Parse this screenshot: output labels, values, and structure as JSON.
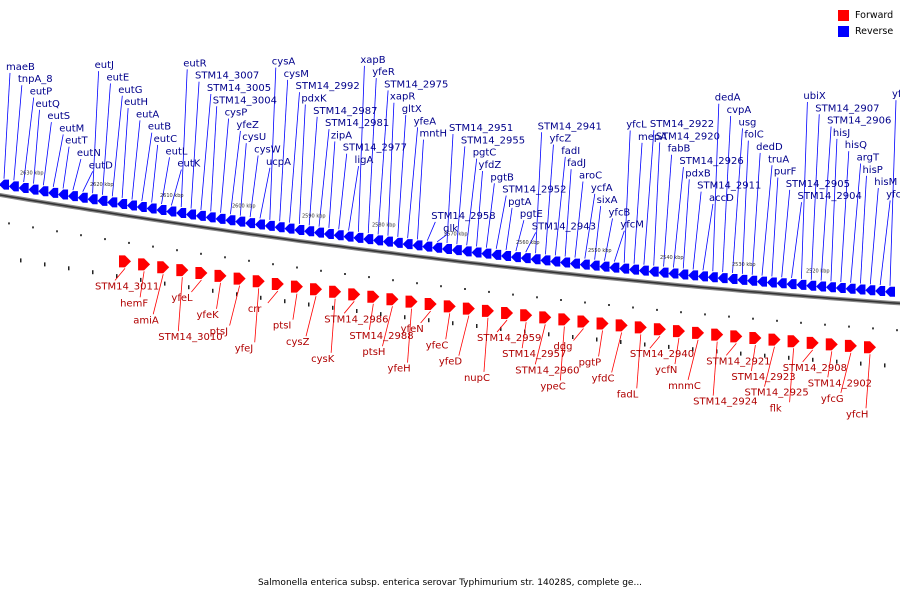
{
  "legend": {
    "forward": {
      "label": "Forward",
      "color": "#ff0000"
    },
    "reverse": {
      "label": "Reverse",
      "color": "#0000ff"
    }
  },
  "caption": "Salmonella enterica subsp. enterica serovar Typhimurium str. 14028S, complete ge...",
  "coordinates": [
    "2630 kbp",
    "2620 kbp",
    "2610 kbp",
    "2600 kbp",
    "2590 kbp",
    "2580 kbp",
    "2570 kbp",
    "2560 kbp",
    "2550 kbp",
    "2540 kbp",
    "2530 kbp",
    "2520 kbp"
  ],
  "reverse_genes": [
    "maeB",
    "tnpA_8",
    "eutP",
    "eutQ",
    "eutS",
    "eutM",
    "eutT",
    "eutN",
    "eutD",
    "eutJ",
    "eutE",
    "eutG",
    "eutH",
    "eutA",
    "eutB",
    "eutC",
    "eutL",
    "eutK",
    "eutR",
    "STM14_3007",
    "STM14_3005",
    "STM14_3004",
    "cysP",
    "yfeZ",
    "cysU",
    "cysW",
    "ucpA",
    "cysA",
    "cysM",
    "STM14_2992",
    "pdxK",
    "STM14_2987",
    "STM14_2981",
    "zipA",
    "STM14_2977",
    "ligA",
    "xapB",
    "yfeR",
    "STM14_2975",
    "xapR",
    "gltX",
    "yfeA",
    "mntH",
    "STM14_2958",
    "glk",
    "STM14_2951",
    "STM14_2955",
    "pgtC",
    "yfdZ",
    "pgtB",
    "STM14_2952",
    "pgtA",
    "pgtE",
    "STM14_2943",
    "STM14_2941",
    "yfcZ",
    "fadI",
    "fadJ",
    "aroC",
    "ycfA",
    "sixA",
    "yfcB",
    "yfcM",
    "yfcL",
    "mepA",
    "STM14_2922",
    "STM14_2920",
    "fabB",
    "STM14_2926",
    "pdxB",
    "STM14_2911",
    "accD",
    "dedA",
    "cvpA",
    "usg",
    "folC",
    "dedD",
    "truA",
    "purF",
    "STM14_2905",
    "STM14_2904",
    "ubiX",
    "STM14_2907",
    "STM14_2906",
    "hisJ",
    "hisQ",
    "argT",
    "hisP",
    "hisM",
    "yfcF",
    "yfcE"
  ],
  "forward_genes": [
    "STM14_3011",
    "hemF",
    "amiA",
    "STM14_3010",
    "yfeL",
    "yfeK",
    "ptsJ",
    "yfeJ",
    "crr",
    "ptsI",
    "cysZ",
    "cysK",
    "STM14_2986",
    "STM14_2988",
    "ptsH",
    "yfeH",
    "yfeN",
    "yfeC",
    "yfeD",
    "nupC",
    "STM14_2959",
    "STM14_2957",
    "STM14_2960",
    "ypeC",
    "ddg",
    "pgtP",
    "yfdC",
    "fadL",
    "STM14_2940",
    "ycfN",
    "mnmC",
    "STM14_2924",
    "STM14_2921",
    "STM14_2923",
    "STM14_2925",
    "flk",
    "STM14_2908",
    "STM14_2902",
    "yfcG",
    "yfcH"
  ]
}
